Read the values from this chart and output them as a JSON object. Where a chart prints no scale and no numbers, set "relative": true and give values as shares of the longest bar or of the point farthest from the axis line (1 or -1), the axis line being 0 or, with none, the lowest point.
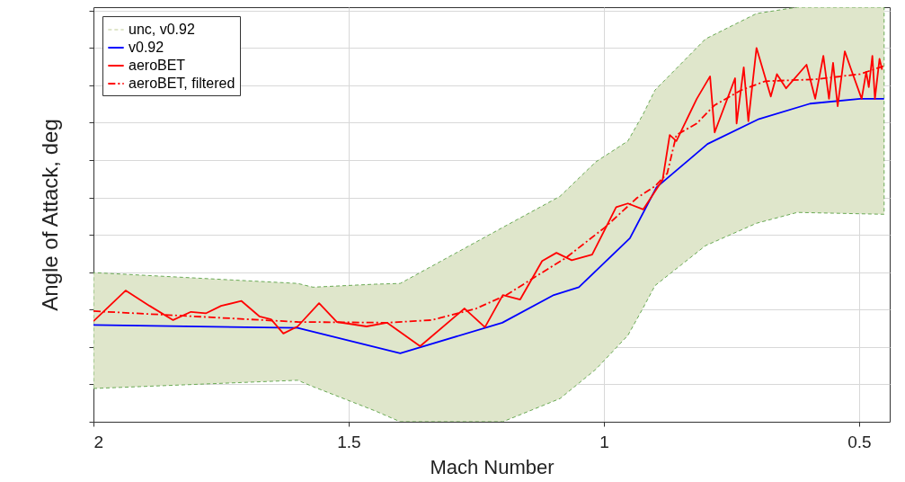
{
  "chart_data": {
    "type": "line",
    "xlabel": "Mach Number",
    "ylabel": "Angle of Attack, deg",
    "relative": true,
    "xlim": [
      2,
      0.44
    ],
    "xticks": [
      2,
      1.5,
      1,
      0.5
    ],
    "grid": true,
    "legend": "top left",
    "series": [
      {
        "name": "unc, v0.92",
        "type": "area",
        "color": "#dfe6cb",
        "x": [
          2.0,
          1.6,
          1.57,
          1.448,
          1.399,
          1.198,
          1.086,
          1.016,
          0.953,
          0.923,
          0.9,
          0.801,
          0.701,
          0.621,
          0.451
        ],
        "values": [
          null,
          null,
          null,
          null,
          null,
          null,
          null,
          null,
          null,
          null,
          null,
          null,
          null,
          null,
          null
        ],
        "lower": [
          0.089,
          0.111,
          0.094,
          0.029,
          0,
          0,
          0.062,
          0.14,
          0.231,
          0.305,
          0.364,
          0.471,
          0.531,
          0.56,
          0.555
        ],
        "upper": [
          0.399,
          0.37,
          0.36,
          0.368,
          0.37,
          0.52,
          0.603,
          0.695,
          0.751,
          0.823,
          0.887,
          1.024,
          1.092,
          1.109,
          1.109
        ]
      },
      {
        "name": "v0.92",
        "type": "line",
        "color": "#0000ff",
        "line_style": "solid",
        "x": [
          2.0,
          1.6,
          1.399,
          1.199,
          1.098,
          1.049,
          0.949,
          0.897,
          0.797,
          0.696,
          0.596,
          0.498,
          0.451
        ],
        "values": [
          0.259,
          0.251,
          0.183,
          0.265,
          0.339,
          0.36,
          0.491,
          0.627,
          0.743,
          0.81,
          0.851,
          0.864,
          0.864
        ]
      },
      {
        "name": "aeroBET",
        "type": "line",
        "color": "#ff0000",
        "line_style": "solid",
        "x": [
          2.0,
          1.937,
          1.89,
          1.844,
          1.809,
          1.78,
          1.75,
          1.71,
          1.675,
          1.652,
          1.628,
          1.6,
          1.558,
          1.523,
          1.465,
          1.425,
          1.36,
          1.273,
          1.233,
          1.198,
          1.164,
          1.121,
          1.093,
          1.063,
          1.023,
          0.976,
          0.953,
          0.923,
          0.885,
          0.871,
          0.858,
          0.818,
          0.792,
          0.783,
          0.743,
          0.74,
          0.726,
          0.717,
          0.701,
          0.673,
          0.661,
          0.643,
          0.603,
          0.586,
          0.57,
          0.559,
          0.551,
          0.542,
          0.528,
          0.517,
          0.495,
          0.486,
          0.481,
          0.474,
          0.469,
          0.46,
          0.455
        ],
        "values": [
          0.269,
          0.351,
          0.31,
          0.272,
          0.294,
          0.29,
          0.31,
          0.323,
          0.282,
          0.274,
          0.236,
          0.255,
          0.317,
          0.267,
          0.255,
          0.265,
          0.202,
          0.303,
          0.253,
          0.339,
          0.327,
          0.43,
          0.452,
          0.432,
          0.447,
          0.574,
          0.584,
          0.568,
          0.647,
          0.767,
          0.751,
          0.864,
          0.924,
          0.774,
          0.919,
          0.798,
          0.948,
          0.804,
          1,
          0.87,
          0.93,
          0.892,
          0.955,
          0.864,
          0.979,
          0.864,
          0.96,
          0.844,
          0.991,
          0.948,
          0.864,
          0.936,
          0.895,
          0.979,
          0.864,
          0.971,
          0.942
        ]
      },
      {
        "name": "aeroBET, filtered",
        "type": "line",
        "color": "#ff0000",
        "line_style": "dashed",
        "x": [
          2.0,
          1.832,
          1.6,
          1.425,
          1.337,
          1.25,
          1.191,
          1.133,
          1.075,
          0.998,
          0.935,
          0.9,
          0.876,
          0.858,
          0.818,
          0.783,
          0.731,
          0.684,
          0.586,
          0.498,
          0.451
        ],
        "values": [
          0.296,
          0.284,
          0.267,
          0.265,
          0.272,
          0.303,
          0.339,
          0.389,
          0.438,
          0.52,
          0.599,
          0.63,
          0.664,
          0.767,
          0.798,
          0.847,
          0.887,
          0.911,
          0.916,
          0.93,
          0.952
        ]
      }
    ]
  }
}
